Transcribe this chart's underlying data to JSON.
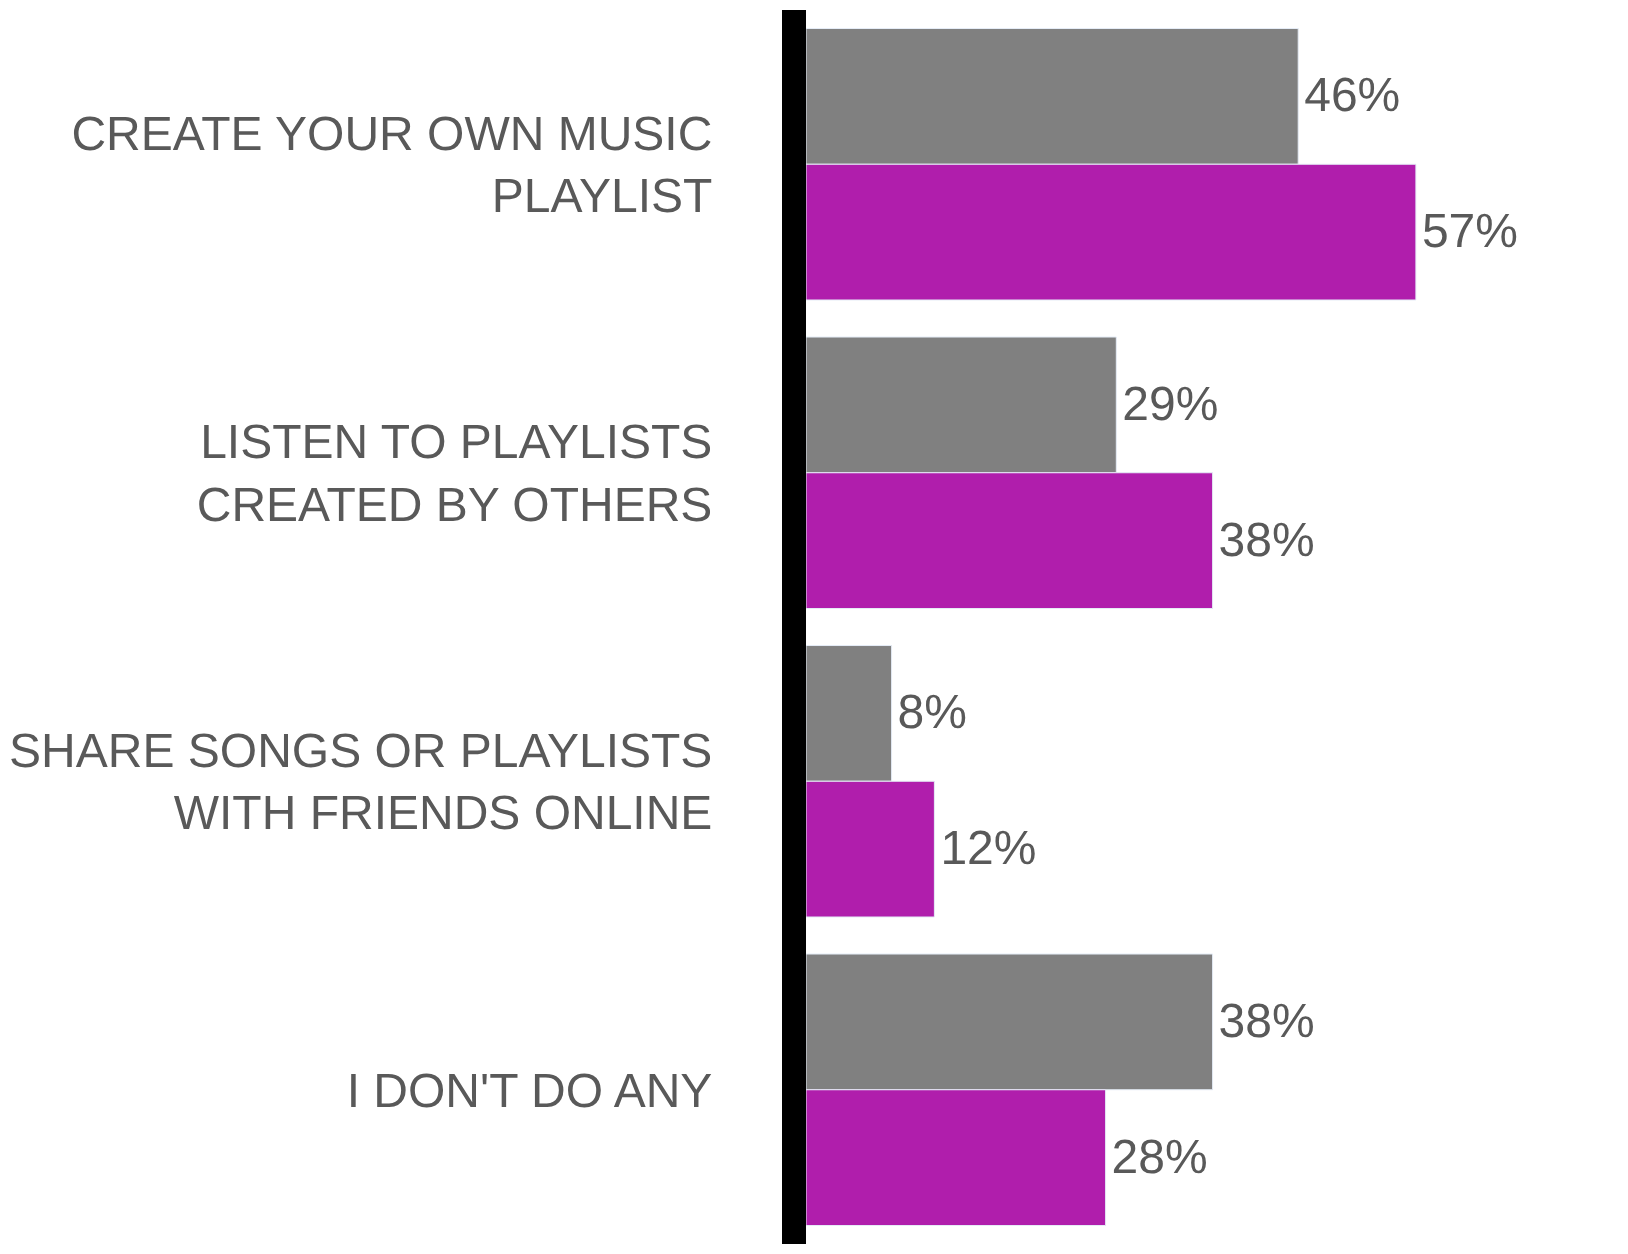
{
  "chart_data": {
    "type": "bar",
    "orientation": "horizontal",
    "categories": [
      "CREATE YOUR OWN MUSIC PLAYLIST",
      "LISTEN TO PLAYLISTS CREATED BY OTHERS",
      "SHARE SONGS OR PLAYLISTS WITH FRIENDS ONLINE",
      "I DON'T DO ANY"
    ],
    "series": [
      {
        "color": "#808080",
        "values": [
          46,
          29,
          8,
          38
        ],
        "value_labels": [
          "46%",
          "29%",
          "8%",
          "38%"
        ]
      },
      {
        "color": "#b01eac",
        "values": [
          57,
          38,
          12,
          28
        ],
        "value_labels": [
          "57%",
          "38%",
          "12%",
          "28%"
        ]
      }
    ],
    "tick_labels": false
  }
}
